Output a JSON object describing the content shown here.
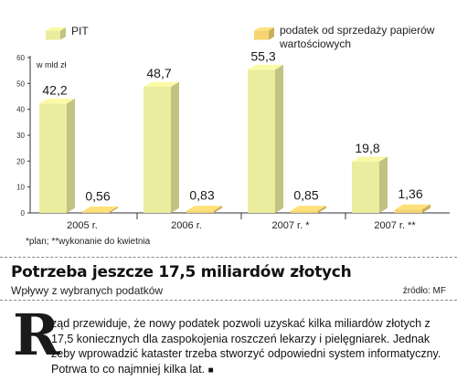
{
  "legend": [
    {
      "label": "PIT",
      "color": "#ecec9e"
    },
    {
      "label": "podatek od sprzedaży papierów wartościowych",
      "color": "#f5d472"
    }
  ],
  "chart_data": {
    "type": "bar",
    "unit_label": "w mld zł",
    "categories": [
      "2005 r.",
      "2006 r.",
      "2007 r. *",
      "2007 r. **"
    ],
    "series": [
      {
        "name": "PIT",
        "values": [
          42.2,
          48.7,
          55.3,
          19.8
        ],
        "labels": [
          "42,2",
          "48,7",
          "55,3",
          "19,8"
        ],
        "color": "#ecec9e"
      },
      {
        "name": "podatek od sprzedaży papierów wartościowych",
        "values": [
          0.56,
          0.83,
          0.85,
          1.36
        ],
        "labels": [
          "0,56",
          "0,83",
          "0,85",
          "1,36"
        ],
        "color": "#f5d472"
      }
    ],
    "ylim": [
      0,
      60
    ],
    "yticks": [
      0,
      10,
      20,
      30,
      40,
      50,
      60
    ],
    "grid": false
  },
  "footnote": "*plan; **wykonanie do kwietnia",
  "headline": "Potrzeba jeszcze 17,5 miliardów złotych",
  "subhead": "Wpływy z wybranych podatków",
  "source": "źródło: MF",
  "article": {
    "dropcap": "R",
    "text": "ząd przewiduje, że nowy podatek pozwoli uzyskać kilka miliardów złotych z 17,5 koniecznych dla zaspokojenia roszczeń lekarzy i pielęgniarek. Jednak żeby wprowadzić kataster trzeba stworzyć odpowiedni system informatyczny. Potrwa to co najmniej kilka lat.",
    "end_mark": "■"
  }
}
